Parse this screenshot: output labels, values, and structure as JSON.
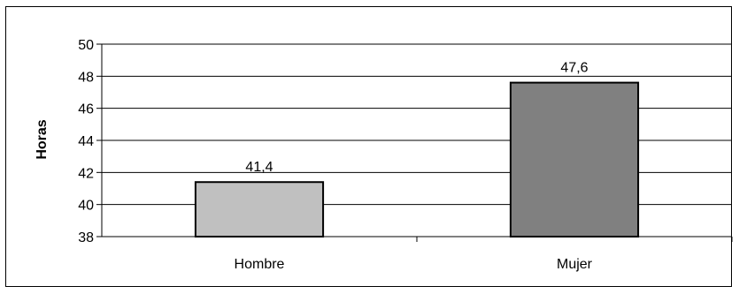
{
  "chart_data": {
    "type": "bar",
    "categories": [
      "Hombre",
      "Mujer"
    ],
    "values": [
      41.4,
      47.6
    ],
    "value_labels": [
      "41,4",
      "47,6"
    ],
    "bar_colors": [
      "#c0c0c0",
      "#808080"
    ],
    "title": "",
    "xlabel": "",
    "ylabel": "Horas",
    "ylim": [
      38,
      50
    ],
    "yticks": [
      38,
      40,
      42,
      44,
      46,
      48,
      50
    ],
    "grid": true,
    "legend": "none"
  }
}
